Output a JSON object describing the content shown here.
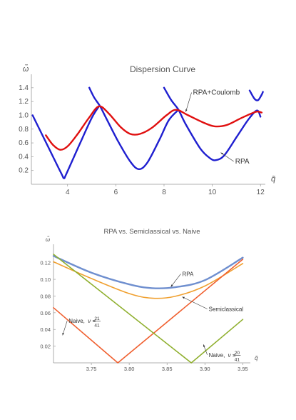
{
  "chart_data": [
    {
      "type": "line",
      "title": "Dispersion Curve",
      "xlabel": "q̃",
      "ylabel": "ω̃",
      "xlim": [
        2.5,
        12.2
      ],
      "ylim": [
        0,
        1.45
      ],
      "xticks": [
        4,
        6,
        8,
        10,
        12
      ],
      "yticks": [
        0.2,
        0.4,
        0.6,
        0.8,
        1.0,
        1.2,
        1.4
      ],
      "series": [
        {
          "name": "RPA",
          "color": "#1f1fd0",
          "segments": [
            [
              [
                2.55,
                1.0
              ],
              [
                3.2,
                0.54
              ],
              [
                3.75,
                0.15
              ],
              [
                3.85,
                0.09
              ],
              [
                3.95,
                0.15
              ],
              [
                4.5,
                0.58
              ],
              [
                5.0,
                0.96
              ],
              [
                5.3,
                1.13
              ]
            ],
            [
              [
                4.9,
                1.4
              ],
              [
                5.1,
                1.26
              ],
              [
                5.35,
                1.13
              ],
              [
                5.6,
                0.96
              ],
              [
                6.1,
                0.62
              ],
              [
                6.6,
                0.33
              ],
              [
                6.95,
                0.22
              ],
              [
                7.3,
                0.31
              ],
              [
                7.8,
                0.64
              ],
              [
                8.2,
                0.93
              ],
              [
                8.6,
                1.08
              ]
            ],
            [
              [
                8.0,
                1.4
              ],
              [
                8.3,
                1.22
              ],
              [
                8.6,
                1.08
              ],
              [
                8.9,
                0.87
              ],
              [
                9.5,
                0.52
              ],
              [
                9.9,
                0.38
              ],
              [
                10.15,
                0.35
              ],
              [
                10.5,
                0.42
              ],
              [
                11.0,
                0.68
              ],
              [
                11.5,
                0.94
              ],
              [
                11.85,
                1.07
              ],
              [
                12.0,
                0.98
              ]
            ],
            [
              [
                11.55,
                1.36
              ],
              [
                11.75,
                1.24
              ],
              [
                11.9,
                1.22
              ],
              [
                12.05,
                1.3
              ],
              [
                12.1,
                1.34
              ]
            ]
          ]
        },
        {
          "name": "RPA+Coulomb",
          "color": "#e01010",
          "segments": [
            [
              [
                3.1,
                0.71
              ],
              [
                3.4,
                0.57
              ],
              [
                3.7,
                0.5
              ],
              [
                4.0,
                0.55
              ],
              [
                4.4,
                0.72
              ],
              [
                4.9,
                0.97
              ],
              [
                5.3,
                1.13
              ],
              [
                5.7,
                1.03
              ],
              [
                6.2,
                0.83
              ],
              [
                6.6,
                0.73
              ],
              [
                7.0,
                0.73
              ],
              [
                7.5,
                0.82
              ],
              [
                8.1,
                1.0
              ],
              [
                8.5,
                1.08
              ],
              [
                9.0,
                1.0
              ],
              [
                9.6,
                0.9
              ],
              [
                10.1,
                0.84
              ],
              [
                10.6,
                0.86
              ],
              [
                11.2,
                0.96
              ],
              [
                11.8,
                1.05
              ],
              [
                12.05,
                1.04
              ]
            ]
          ]
        }
      ],
      "annotations": [
        {
          "text": "RPA+Coulomb",
          "x": 9.2,
          "y": 1.3,
          "pointer": [
            8.9,
            1.05
          ]
        },
        {
          "text": "RPA",
          "x": 10.95,
          "y": 0.3,
          "pointer": [
            10.35,
            0.46
          ]
        }
      ]
    },
    {
      "type": "line",
      "title": "RPA vs. Semiclassical vs. Naive",
      "xlabel": "q̃",
      "ylabel": "ω̃",
      "xlim": [
        3.7,
        3.96
      ],
      "ylim": [
        0.0,
        0.13
      ],
      "xticks": [
        3.75,
        3.8,
        3.85,
        3.9,
        3.95
      ],
      "yticks": [
        0.02,
        0.04,
        0.06,
        0.08,
        0.1,
        0.12
      ],
      "series": [
        {
          "name": "RPA",
          "color": "#6f8fcf",
          "points": [
            [
              3.7,
              0.128
            ],
            [
              3.75,
              0.108
            ],
            [
              3.8,
              0.094
            ],
            [
              3.83,
              0.0895
            ],
            [
              3.86,
              0.0905
            ],
            [
              3.9,
              0.099
            ],
            [
              3.95,
              0.126
            ]
          ]
        },
        {
          "name": "Semiclassical",
          "color": "#f0a030",
          "points": [
            [
              3.7,
              0.121
            ],
            [
              3.75,
              0.101
            ],
            [
              3.8,
              0.083
            ],
            [
              3.83,
              0.0775
            ],
            [
              3.86,
              0.0795
            ],
            [
              3.9,
              0.092
            ],
            [
              3.95,
              0.119
            ]
          ]
        },
        {
          "name": "Naive, ν = 21/41",
          "color": "#f06030",
          "points": [
            [
              3.7,
              0.066
            ],
            [
              3.785,
              0.0
            ],
            [
              3.95,
              0.124
            ]
          ]
        },
        {
          "name": "Naive, ν = 20/41",
          "color": "#90b030",
          "points": [
            [
              3.7,
              0.13
            ],
            [
              3.882,
              0.0
            ],
            [
              3.95,
              0.052
            ]
          ]
        }
      ],
      "annotations": [
        {
          "text": "RPA",
          "x": 3.87,
          "y": 0.104,
          "pointer": [
            3.855,
            0.091
          ]
        },
        {
          "text": "Semiclassical",
          "x": 3.905,
          "y": 0.062,
          "pointer": [
            3.87,
            0.079
          ]
        },
        {
          "text": "Naive,",
          "nu_num": "21",
          "nu_den": "41",
          "x": 3.72,
          "y": 0.048,
          "pointer": [
            3.712,
            0.033
          ]
        },
        {
          "text": "Naive,",
          "nu_num": "20",
          "nu_den": "41",
          "x": 3.905,
          "y": 0.007,
          "pointer": [
            3.898,
            0.022
          ]
        }
      ]
    }
  ]
}
